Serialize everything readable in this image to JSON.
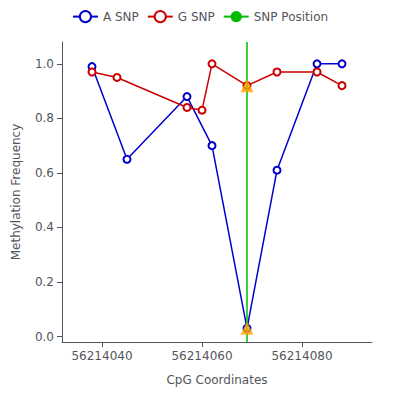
{
  "chart_data": {
    "type": "line",
    "xlabel": "CpG Coordinates",
    "ylabel": "Methylation Frequency",
    "xlim": [
      56214032,
      56214094
    ],
    "xticks": [
      56214040,
      56214060,
      56214080
    ],
    "ylim": [
      -0.02,
      1.08
    ],
    "yticks": [
      {
        "value": 0.0,
        "label": "0.0"
      },
      0.2,
      0.4,
      0.6,
      0.8,
      {
        "value": 1.0,
        "label": "1.0"
      }
    ],
    "grid": false,
    "legend": "top",
    "series": [
      {
        "name": "A SNP",
        "color": "#0000cc",
        "marker": "circle",
        "x": [
          56214038,
          56214045,
          56214057,
          56214062,
          56214069,
          56214075,
          56214083,
          56214088
        ],
        "values": [
          0.99,
          0.65,
          0.88,
          0.7,
          0.03,
          0.61,
          1.0,
          1.0
        ]
      },
      {
        "name": "G SNP",
        "color": "#cc0000",
        "marker": "circle",
        "x": [
          56214038,
          56214043,
          56214057,
          56214060,
          56214062,
          56214069,
          56214075,
          56214083,
          56214088
        ],
        "values": [
          0.97,
          0.95,
          0.84,
          0.83,
          1.0,
          0.92,
          0.97,
          0.97,
          0.92
        ]
      },
      {
        "name": "SNP Position",
        "type": "vline",
        "color": "#00bb00",
        "x": [
          56214069
        ]
      },
      {
        "type": "scatter",
        "marker": "triangle",
        "color": "#FFA500",
        "x": [
          56214069,
          56214069
        ],
        "values": [
          0.03,
          0.92
        ]
      }
    ]
  }
}
